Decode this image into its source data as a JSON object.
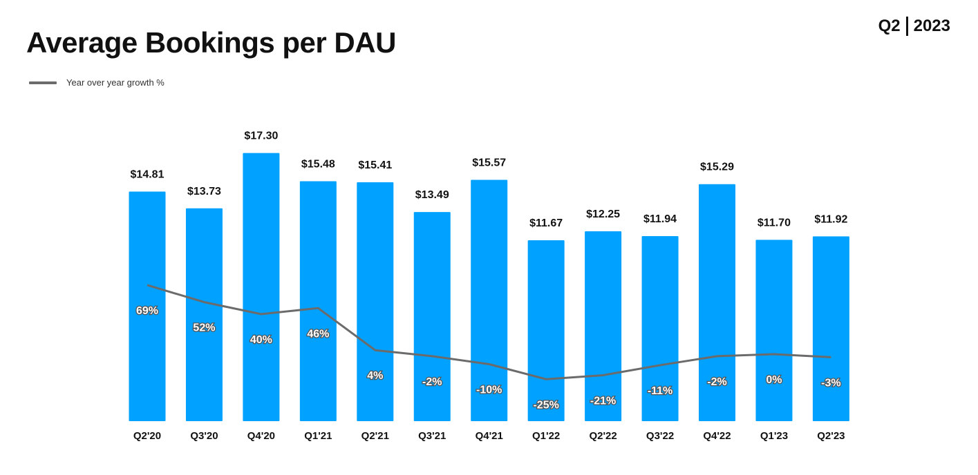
{
  "header": {
    "title": "Average Bookings per DAU",
    "period_quarter": "Q2",
    "period_year": "2023"
  },
  "legend": {
    "line_label": "Year over year growth %"
  },
  "colors": {
    "bar": "#00A1FF",
    "line": "#6b6b6b",
    "text": "#111111"
  },
  "chart_data": {
    "type": "bar",
    "title": "Average Bookings per DAU",
    "categories": [
      "Q2'20",
      "Q3'20",
      "Q4'20",
      "Q1'21",
      "Q2'21",
      "Q3'21",
      "Q4'21",
      "Q1'22",
      "Q2'22",
      "Q3'22",
      "Q4'22",
      "Q1'23",
      "Q2'23"
    ],
    "series": [
      {
        "type": "bar",
        "values": [
          14.81,
          13.73,
          17.3,
          15.48,
          15.41,
          13.49,
          15.57,
          11.67,
          12.25,
          11.94,
          15.29,
          11.7,
          11.92
        ],
        "labels": [
          "$14.81",
          "$13.73",
          "$17.30",
          "$15.48",
          "$15.41",
          "$13.49",
          "$15.57",
          "$11.67",
          "$12.25",
          "$11.94",
          "$15.29",
          "$11.70",
          "$11.92"
        ]
      },
      {
        "name": "Year over year growth %",
        "type": "line",
        "values": [
          69,
          52,
          40,
          46,
          4,
          -2,
          -10,
          -25,
          -21,
          -11,
          -2,
          0,
          -3
        ],
        "labels": [
          "69%",
          "52%",
          "40%",
          "46%",
          "4%",
          "-2%",
          "-10%",
          "-25%",
          "-21%",
          "-11%",
          "-2%",
          "0%",
          "-3%"
        ]
      }
    ],
    "xlabel": "",
    "ylabel": "",
    "legend_position": "top-left",
    "grid": false
  }
}
